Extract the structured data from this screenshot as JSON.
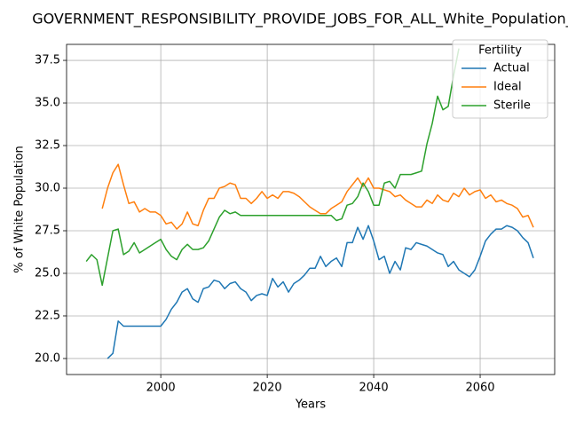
{
  "chart_data": {
    "type": "line",
    "title": "GOVERNMENT_RESPONSIBILITY_PROVIDE_JOBS_FOR_ALL_White_Population_so",
    "xlabel": "Years",
    "ylabel": "% of White Population",
    "legend_title": "Fertility",
    "legend": "upper right",
    "grid": true,
    "x": [
      1986,
      1987,
      1988,
      1989,
      1990,
      1991,
      1992,
      1993,
      1994,
      1995,
      1996,
      1997,
      1998,
      1999,
      2000,
      2001,
      2002,
      2003,
      2004,
      2005,
      2006,
      2007,
      2008,
      2009,
      2010,
      2011,
      2012,
      2013,
      2014,
      2015,
      2016,
      2017,
      2018,
      2019,
      2020,
      2021,
      2022,
      2023,
      2024,
      2025,
      2026,
      2027,
      2028,
      2029,
      2030,
      2031,
      2032,
      2033,
      2034,
      2035,
      2036,
      2037,
      2038,
      2039,
      2040,
      2041,
      2042,
      2043,
      2044,
      2045,
      2046,
      2047,
      2048,
      2049,
      2050,
      2051,
      2052,
      2053,
      2054,
      2055,
      2056,
      2057,
      2058,
      2059,
      2060,
      2061,
      2062,
      2063,
      2064,
      2065,
      2066,
      2067,
      2068,
      2069,
      2070
    ],
    "series": [
      {
        "name": "Actual",
        "color": "#1f77b4",
        "values": [
          null,
          null,
          null,
          null,
          20.0,
          20.3,
          22.2,
          21.9,
          21.9,
          21.9,
          21.9,
          21.9,
          21.9,
          21.9,
          21.9,
          22.3,
          22.9,
          23.3,
          23.9,
          24.1,
          23.5,
          23.3,
          24.1,
          24.2,
          24.6,
          24.5,
          24.1,
          24.4,
          24.5,
          24.1,
          23.9,
          23.4,
          23.7,
          23.8,
          23.7,
          24.7,
          24.2,
          24.5,
          23.9,
          24.4,
          24.6,
          24.9,
          25.3,
          25.3,
          26.0,
          25.4,
          25.7,
          25.9,
          25.4,
          26.8,
          26.8,
          27.7,
          27.0,
          27.8,
          26.9,
          25.8,
          26.0,
          25.0,
          25.7,
          25.2,
          26.5,
          26.4,
          26.8,
          26.7,
          26.6,
          26.4,
          26.2,
          26.1,
          25.4,
          25.7,
          25.2,
          25.0,
          24.8,
          25.2,
          26.0,
          26.9,
          27.3,
          27.6,
          27.6,
          27.8,
          27.7,
          27.5,
          27.1,
          26.8,
          25.9
        ]
      },
      {
        "name": "Ideal",
        "color": "#ff7f0e",
        "values": [
          null,
          null,
          null,
          28.8,
          30.0,
          30.9,
          31.4,
          30.2,
          29.1,
          29.2,
          28.6,
          28.8,
          28.6,
          28.6,
          28.4,
          27.9,
          28.0,
          27.6,
          27.9,
          28.6,
          27.9,
          27.8,
          28.7,
          29.4,
          29.4,
          30.0,
          30.1,
          30.3,
          30.2,
          29.4,
          29.4,
          29.1,
          29.4,
          29.8,
          29.4,
          29.6,
          29.4,
          29.8,
          29.8,
          29.7,
          29.5,
          29.2,
          28.9,
          28.7,
          28.5,
          28.5,
          28.8,
          29.0,
          29.2,
          29.8,
          30.2,
          30.6,
          30.1,
          30.6,
          30.0,
          30.0,
          29.9,
          29.8,
          29.5,
          29.6,
          29.3,
          29.1,
          28.9,
          28.9,
          29.3,
          29.1,
          29.6,
          29.3,
          29.2,
          29.7,
          29.5,
          30.0,
          29.6,
          29.8,
          29.9,
          29.4,
          29.6,
          29.2,
          29.3,
          29.1,
          29.0,
          28.8,
          28.3,
          28.4,
          27.7
        ]
      },
      {
        "name": "Sterile",
        "color": "#2ca02c",
        "values": [
          25.7,
          26.1,
          25.8,
          24.3,
          25.9,
          27.5,
          27.6,
          26.1,
          26.3,
          26.8,
          26.2,
          26.4,
          26.6,
          26.8,
          27.0,
          26.4,
          26.0,
          25.8,
          26.4,
          26.7,
          26.4,
          26.4,
          26.5,
          26.9,
          27.6,
          28.3,
          28.7,
          28.5,
          28.6,
          28.4,
          28.4,
          28.4,
          28.4,
          28.4,
          28.4,
          28.4,
          28.4,
          28.4,
          28.4,
          28.4,
          28.4,
          28.4,
          28.4,
          28.4,
          28.4,
          28.4,
          28.4,
          28.1,
          28.2,
          29.0,
          29.1,
          29.5,
          30.3,
          29.8,
          29.0,
          29.0,
          30.3,
          30.4,
          30.0,
          30.8,
          30.8,
          30.8,
          30.9,
          31.0,
          32.6,
          33.8,
          35.4,
          34.6,
          34.8,
          36.6,
          38.2,
          null,
          null,
          null,
          null,
          null,
          null,
          null,
          null,
          null,
          null,
          null,
          null,
          null,
          null
        ]
      }
    ],
    "xlim": [
      1982.3,
      2074
    ],
    "ylim": [
      19.06,
      38.44
    ],
    "xticks": [
      2000,
      2020,
      2040,
      2060
    ],
    "yticks": [
      {
        "value": 20,
        "label": "20.0"
      },
      22.5,
      {
        "value": 25,
        "label": "25.0"
      },
      27.5,
      {
        "value": 30,
        "label": "30.0"
      },
      32.5,
      {
        "value": 35,
        "label": "35.0"
      },
      37.5
    ]
  }
}
